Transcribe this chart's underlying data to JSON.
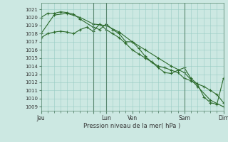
{
  "bg_color": "#cce8e2",
  "grid_color": "#99ccC4",
  "line_color": "#2d6b2d",
  "xlabel": "Pression niveau de la mer( hPa )",
  "ylim": [
    1008.5,
    1021.8
  ],
  "yticks": [
    1009,
    1010,
    1011,
    1012,
    1013,
    1014,
    1015,
    1016,
    1017,
    1018,
    1019,
    1020,
    1021
  ],
  "xlim": [
    0,
    168
  ],
  "day_tick_positions": [
    0,
    48,
    60,
    84,
    132,
    168
  ],
  "day_labels": [
    "Jeu",
    "",
    "Lun",
    "Ven",
    "Sam",
    "Dim"
  ],
  "vline_positions": [
    48,
    60,
    132,
    168
  ],
  "series1_x": [
    0,
    6,
    12,
    18,
    24,
    30,
    36,
    48,
    54,
    60,
    66,
    72,
    78,
    84,
    90,
    96,
    102,
    108,
    114,
    120,
    126,
    132,
    138,
    144,
    150,
    156,
    162,
    168
  ],
  "series1_y": [
    1020.0,
    1020.5,
    1020.5,
    1020.7,
    1020.6,
    1020.4,
    1019.8,
    1018.8,
    1018.5,
    1019.2,
    1018.5,
    1018.0,
    1017.0,
    1017.0,
    1016.2,
    1015.2,
    1014.5,
    1013.8,
    1013.2,
    1013.1,
    1013.5,
    1013.8,
    1012.5,
    1011.8,
    1010.2,
    1009.5,
    1009.3,
    1012.5
  ],
  "series2_x": [
    0,
    6,
    12,
    18,
    24,
    30,
    36,
    42,
    48,
    54,
    60,
    66,
    72,
    78,
    84,
    90,
    96,
    102,
    108,
    114,
    120,
    126,
    132,
    138,
    144,
    150,
    156,
    162,
    168
  ],
  "series2_y": [
    1017.5,
    1018.0,
    1018.2,
    1018.3,
    1018.2,
    1018.0,
    1018.5,
    1018.8,
    1018.3,
    1019.2,
    1018.5,
    1018.0,
    1017.5,
    1016.8,
    1016.0,
    1015.5,
    1015.0,
    1014.5,
    1014.0,
    1013.8,
    1013.5,
    1013.2,
    1012.5,
    1012.2,
    1011.8,
    1011.5,
    1011.0,
    1010.5,
    1009.5
  ],
  "series3_x": [
    0,
    12,
    24,
    36,
    48,
    60,
    72,
    84,
    96,
    108,
    120,
    132,
    144,
    156,
    168
  ],
  "series3_y": [
    1018.0,
    1020.3,
    1020.5,
    1020.0,
    1019.2,
    1019.0,
    1018.2,
    1017.0,
    1016.0,
    1015.0,
    1014.0,
    1013.2,
    1011.5,
    1009.8,
    1009.0
  ]
}
